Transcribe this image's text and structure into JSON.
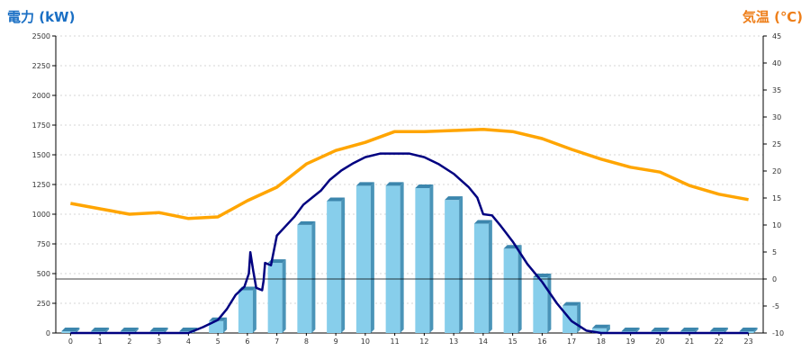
{
  "chart_data": {
    "type": "bar+line",
    "left_title": "電力 (kW)",
    "right_title": "気温 (℃)",
    "y_left": {
      "min": 0,
      "max": 2500,
      "ticks": [
        0,
        250,
        500,
        750,
        1000,
        1250,
        1500,
        1750,
        2000,
        2250,
        2500
      ]
    },
    "y_right": {
      "min": -10,
      "max": 45,
      "ticks": [
        -10,
        -5,
        0,
        5,
        10,
        15,
        20,
        25,
        30,
        35,
        40,
        45
      ]
    },
    "categories": [
      "0",
      "1",
      "2",
      "3",
      "4",
      "5",
      "6",
      "7",
      "8",
      "9",
      "10",
      "11",
      "12",
      "13",
      "14",
      "15",
      "16",
      "17",
      "18",
      "19",
      "20",
      "21",
      "22",
      "23"
    ],
    "grid": true,
    "series": [
      {
        "kind": "bar",
        "axis": "left",
        "color": "#87ceeb",
        "values": [
          15,
          15,
          15,
          15,
          15,
          100,
          360,
          590,
          910,
          1110,
          1240,
          1240,
          1220,
          1120,
          920,
          710,
          470,
          230,
          40,
          15,
          15,
          15,
          15,
          15
        ]
      },
      {
        "kind": "line",
        "axis": "left",
        "color": "#000080",
        "points": [
          [
            0,
            0
          ],
          [
            1,
            0
          ],
          [
            2,
            0
          ],
          [
            3,
            0
          ],
          [
            4,
            0
          ],
          [
            4.5,
            50
          ],
          [
            5,
            110
          ],
          [
            5.3,
            200
          ],
          [
            5.6,
            320
          ],
          [
            5.9,
            390
          ],
          [
            6.05,
            500
          ],
          [
            6.1,
            680
          ],
          [
            6.2,
            520
          ],
          [
            6.3,
            380
          ],
          [
            6.5,
            360
          ],
          [
            6.55,
            440
          ],
          [
            6.6,
            590
          ],
          [
            6.8,
            570
          ],
          [
            7,
            820
          ],
          [
            7.3,
            900
          ],
          [
            7.6,
            980
          ],
          [
            7.9,
            1080
          ],
          [
            8.2,
            1140
          ],
          [
            8.5,
            1200
          ],
          [
            8.8,
            1290
          ],
          [
            9.2,
            1370
          ],
          [
            9.6,
            1430
          ],
          [
            10,
            1480
          ],
          [
            10.5,
            1510
          ],
          [
            11,
            1510
          ],
          [
            11.5,
            1510
          ],
          [
            12,
            1480
          ],
          [
            12.5,
            1420
          ],
          [
            13,
            1340
          ],
          [
            13.5,
            1230
          ],
          [
            13.8,
            1140
          ],
          [
            14,
            1000
          ],
          [
            14.3,
            990
          ],
          [
            14.6,
            900
          ],
          [
            15,
            770
          ],
          [
            15.5,
            580
          ],
          [
            16,
            430
          ],
          [
            16.5,
            250
          ],
          [
            17,
            100
          ],
          [
            17.5,
            20
          ],
          [
            18,
            0
          ],
          [
            19,
            0
          ],
          [
            20,
            0
          ],
          [
            21,
            0
          ],
          [
            22,
            0
          ],
          [
            23,
            0
          ]
        ]
      },
      {
        "kind": "line",
        "axis": "right",
        "color": "#ffa500",
        "values": [
          14,
          13,
          12,
          12.3,
          11.2,
          11.5,
          14.5,
          17,
          21.3,
          23.8,
          25.3,
          27.3,
          27.3,
          27.5,
          27.7,
          27.3,
          26,
          24,
          22.2,
          20.7,
          19.8,
          17.3,
          15.7,
          14.7
        ]
      }
    ]
  }
}
